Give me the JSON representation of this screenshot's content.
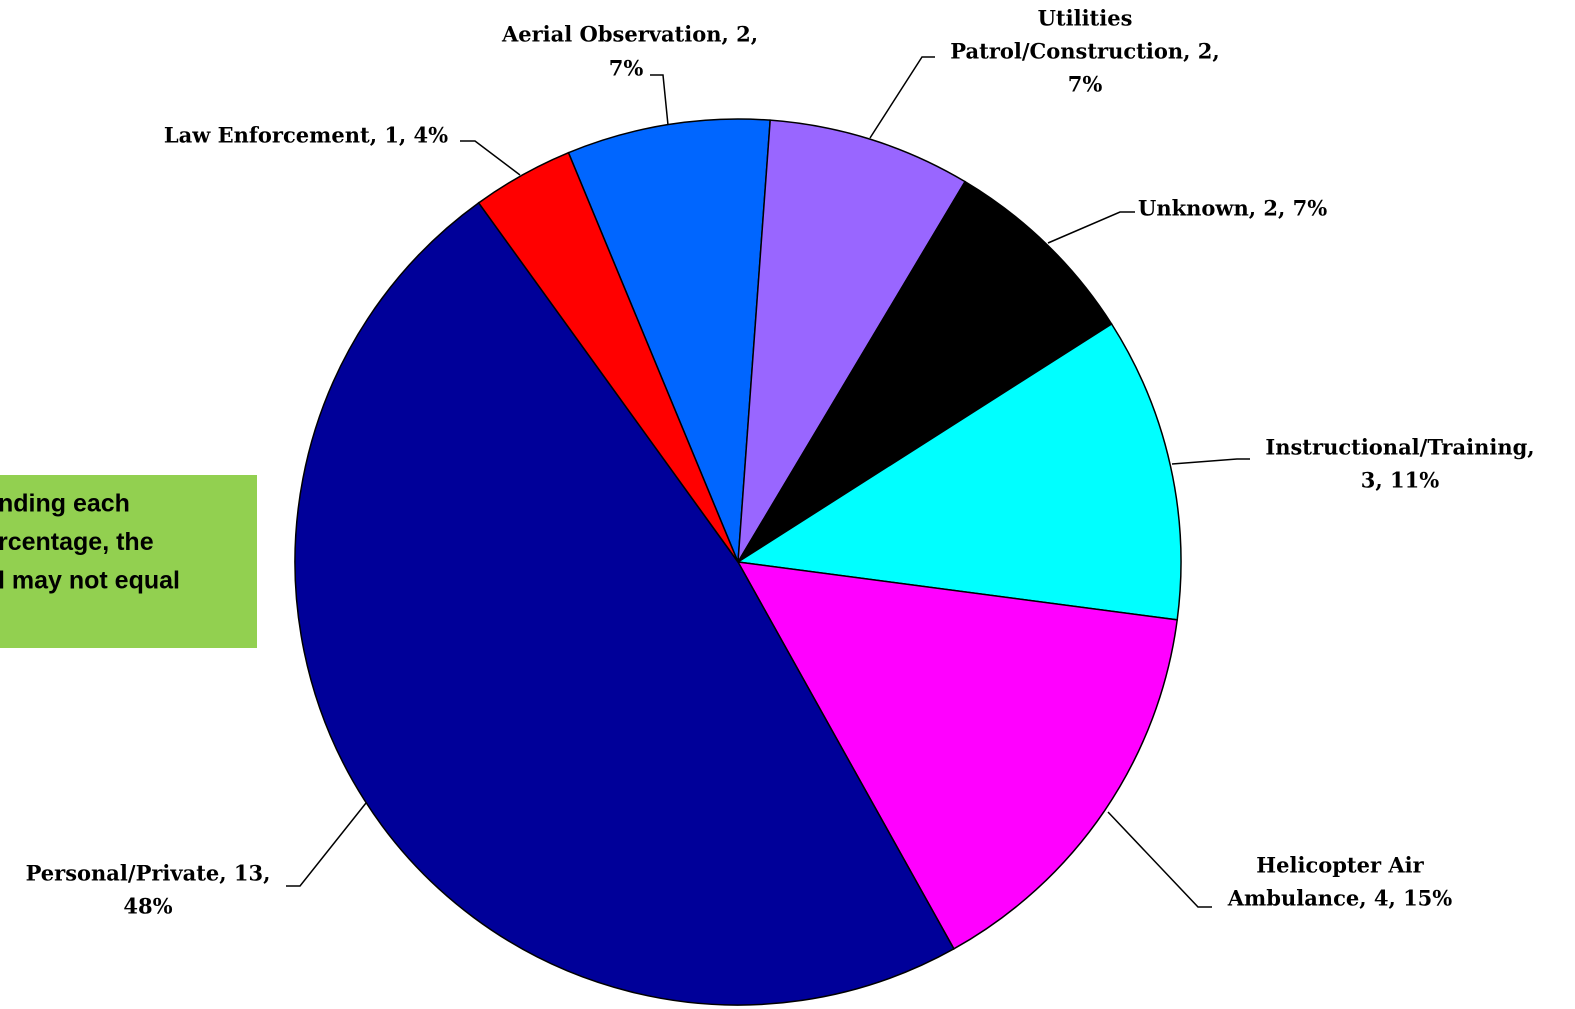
{
  "chart_data": {
    "type": "pie",
    "labels": [
      [
        "Aerial Observation, 2,",
        "7%"
      ],
      [
        "Utilities",
        "Patrol/Construction, 2,",
        "7%"
      ],
      [
        "Unknown, 2, 7%"
      ],
      [
        "Instructional/Training,",
        "3, 11%"
      ],
      [
        "Helicopter Air",
        "Ambulance, 4, 15%"
      ],
      [
        "Personal/Private, 13,",
        "48%"
      ],
      [
        "Law Enforcement, 1, 4%"
      ]
    ],
    "values": [
      2,
      2,
      2,
      3,
      4,
      13,
      1
    ],
    "colors": [
      "#0066ff",
      "#9966ff",
      "#000000",
      "#00ffff",
      "#ff00ff",
      "#000099",
      "#ff0000"
    ],
    "annotation": [
      "nding each",
      "rcentage, the",
      "l may not equal"
    ]
  }
}
